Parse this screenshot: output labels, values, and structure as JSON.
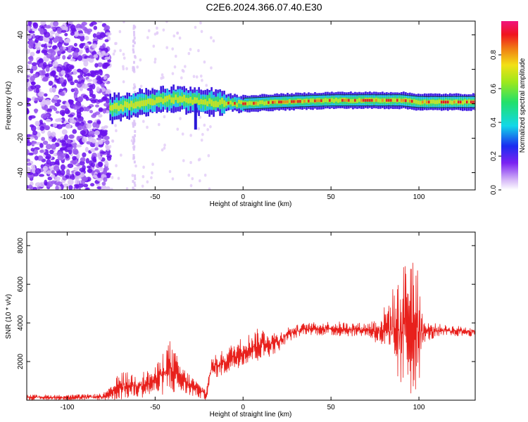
{
  "title": "C2E6.2024.366.07.40.E30",
  "colors": {
    "snr_line": "#e8201c",
    "cold_purple": "#7a1cf0",
    "noise_lilac": "#d7b8f5"
  },
  "chart_data": [
    {
      "type": "heatmap",
      "name": "spectrogram",
      "xlabel": "Height of straight line (km)",
      "ylabel": "Frequency (Hz)",
      "xlim": [
        -123,
        132
      ],
      "ylim": [
        -50,
        48
      ],
      "x_ticks": [
        -100,
        -50,
        0,
        50,
        100
      ],
      "y_ticks": [
        -40,
        -20,
        0,
        20,
        40
      ],
      "colorbar": {
        "label": "Normalized spectral amplitude",
        "range": [
          0,
          1
        ],
        "ticks": [
          0.0,
          0.2,
          0.4,
          0.6,
          0.8
        ],
        "tick_labels": [
          "0.0",
          "0.2",
          "0.4",
          "0.6",
          "0.8"
        ],
        "colormap": "rainbow (violet-blue-cyan-green-yellow-red-magenta)"
      },
      "signal_band": {
        "x_start": -76,
        "x_end": 132,
        "center_freq_points": [
          [
            -76,
            -3
          ],
          [
            -60,
            0
          ],
          [
            -40,
            3
          ],
          [
            -20,
            1
          ],
          [
            0,
            0
          ],
          [
            20,
            1
          ],
          [
            50,
            2
          ],
          [
            90,
            2
          ],
          [
            100,
            1
          ],
          [
            132,
            1
          ]
        ],
        "spur": {
          "x": -27,
          "freq_min": -15,
          "freq_max": 0
        }
      },
      "noise_region": {
        "x_start": -123,
        "x_end": -76
      }
    },
    {
      "type": "line",
      "name": "snr",
      "xlabel": "Height of straight line (km)",
      "ylabel": "SNR (10 * v/v)",
      "xlim": [
        -123,
        132
      ],
      "ylim": [
        0,
        8700
      ],
      "x_ticks": [
        -100,
        -50,
        0,
        50,
        100
      ],
      "y_ticks": [
        2000,
        4000,
        6000,
        8000
      ],
      "envelope": [
        {
          "x": -123,
          "low": 0,
          "high": 300
        },
        {
          "x": -100,
          "low": 0,
          "high": 280
        },
        {
          "x": -80,
          "low": 0,
          "high": 350
        },
        {
          "x": -75,
          "low": 0,
          "high": 700
        },
        {
          "x": -70,
          "low": 0,
          "high": 1500
        },
        {
          "x": -60,
          "low": 100,
          "high": 1400
        },
        {
          "x": -50,
          "low": 200,
          "high": 1700
        },
        {
          "x": -42,
          "low": 300,
          "high": 3200
        },
        {
          "x": -35,
          "low": 300,
          "high": 1800
        },
        {
          "x": -25,
          "low": 100,
          "high": 900
        },
        {
          "x": -21,
          "low": 0,
          "high": 600
        },
        {
          "x": -18,
          "low": 1100,
          "high": 2200
        },
        {
          "x": -10,
          "low": 1300,
          "high": 2700
        },
        {
          "x": 0,
          "low": 1800,
          "high": 3300
        },
        {
          "x": 10,
          "low": 2000,
          "high": 3800
        },
        {
          "x": 20,
          "low": 2500,
          "high": 3500
        },
        {
          "x": 25,
          "low": 3000,
          "high": 3800
        },
        {
          "x": 35,
          "low": 3400,
          "high": 4000
        },
        {
          "x": 50,
          "low": 3300,
          "high": 4100
        },
        {
          "x": 70,
          "low": 3300,
          "high": 4000
        },
        {
          "x": 78,
          "low": 2800,
          "high": 4400
        },
        {
          "x": 85,
          "low": 1500,
          "high": 5800
        },
        {
          "x": 90,
          "low": 500,
          "high": 6500
        },
        {
          "x": 95,
          "low": 0,
          "high": 8700
        },
        {
          "x": 100,
          "low": 800,
          "high": 6400
        },
        {
          "x": 103,
          "low": 3000,
          "high": 4100
        },
        {
          "x": 115,
          "low": 3300,
          "high": 3900
        },
        {
          "x": 132,
          "low": 3300,
          "high": 3800
        }
      ]
    }
  ]
}
